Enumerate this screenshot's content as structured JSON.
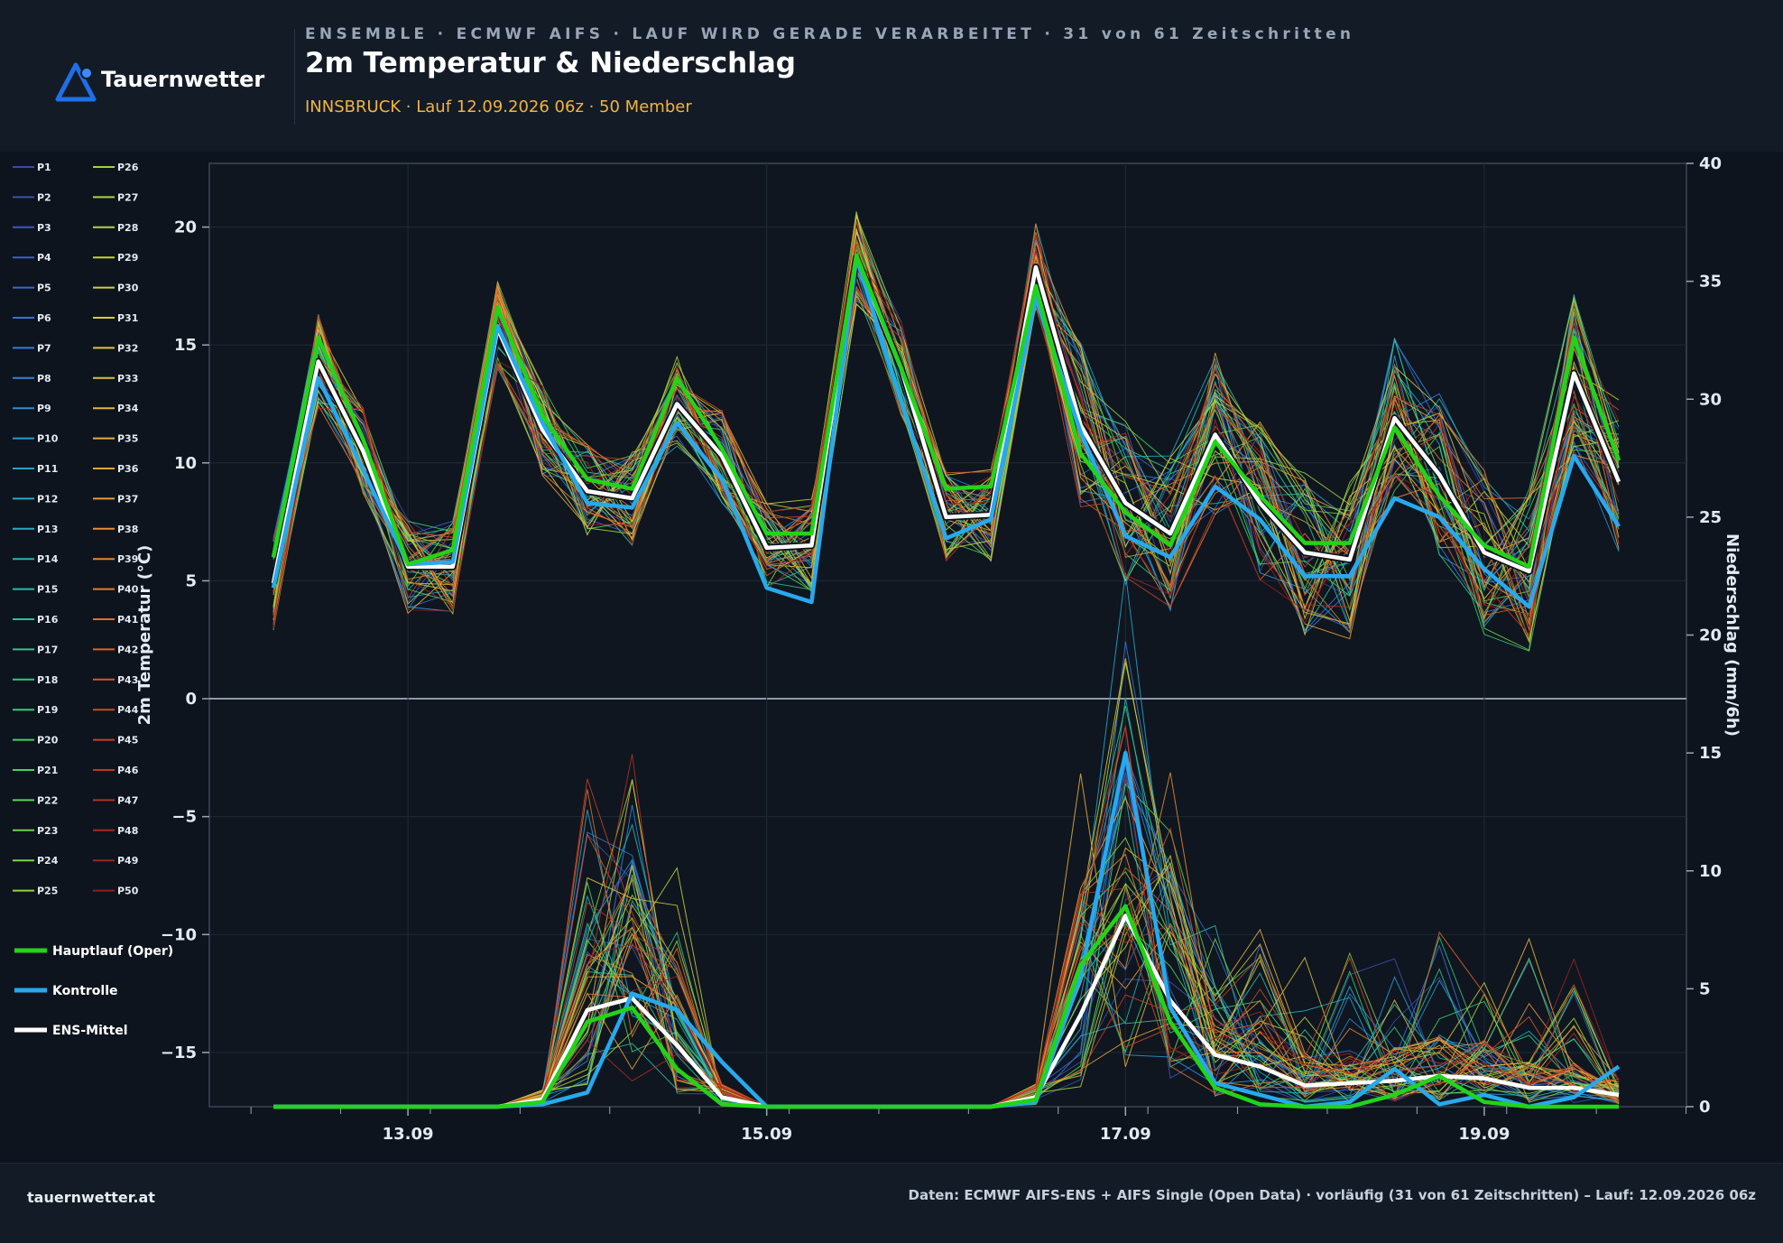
{
  "header": {
    "logo_text": "Tauernwetter",
    "kicker": "ENSEMBLE · ECMWF AIFS · LAUF WIRD GERADE VERARBEITET · 31 von 61 Zeitschritten",
    "title": "2m Temperatur & Niederschlag",
    "subtitle": "INNSBRUCK · Lauf 12.09.2026 06z · 50 Member"
  },
  "footer": {
    "site": "tauernwetter.at",
    "source": "Daten: ECMWF AIFS-ENS + AIFS Single (Open Data) · vorläufig (31 von 61 Zeitschritten) – Lauf: 12.09.2026 06z"
  },
  "colors": {
    "background": "#0e141d",
    "header": "#131b26",
    "oper": "#22d418",
    "control": "#27a9ee",
    "mean": "#ffffff",
    "subtitle": "#f2b43c",
    "logo": "#1f6fe8"
  },
  "chart_data": {
    "type": "line",
    "x": [
      "12.09 06z",
      "12.09 12z",
      "12.09 18z",
      "13.09 00z",
      "13.09 06z",
      "13.09 12z",
      "13.09 18z",
      "14.09 00z",
      "14.09 06z",
      "14.09 12z",
      "14.09 18z",
      "15.09 00z",
      "15.09 06z",
      "15.09 12z",
      "15.09 18z",
      "16.09 00z",
      "16.09 06z",
      "16.09 12z",
      "16.09 18z",
      "17.09 00z",
      "17.09 06z",
      "17.09 12z",
      "17.09 18z",
      "18.09 00z",
      "18.09 06z",
      "18.09 12z",
      "18.09 18z",
      "19.09 00z",
      "19.09 06z",
      "19.09 12z",
      "19.09 18z"
    ],
    "x_ticks": [
      "13.09",
      "15.09",
      "17.09",
      "19.09"
    ],
    "xlabel": "",
    "y_left": {
      "label": "2m Temperatur (°C)",
      "range": [
        -17.3,
        22.7
      ],
      "ticks": [
        -15,
        -10,
        -5,
        0,
        5,
        10,
        15,
        20
      ]
    },
    "y_right": {
      "label": "Niederschlag (mm/6h)",
      "range": [
        0,
        40
      ],
      "ticks": [
        0,
        5,
        10,
        15,
        20,
        25,
        30,
        35,
        40
      ]
    },
    "grid": true,
    "legend_placement": "left",
    "members": [
      "P1",
      "P2",
      "P3",
      "P4",
      "P5",
      "P6",
      "P7",
      "P8",
      "P9",
      "P10",
      "P11",
      "P12",
      "P13",
      "P14",
      "P15",
      "P16",
      "P17",
      "P18",
      "P19",
      "P20",
      "P21",
      "P22",
      "P23",
      "P24",
      "P25",
      "P26",
      "P27",
      "P28",
      "P29",
      "P30",
      "P31",
      "P32",
      "P33",
      "P34",
      "P35",
      "P36",
      "P37",
      "P38",
      "P39",
      "P40",
      "P41",
      "P42",
      "P43",
      "P44",
      "P45",
      "P46",
      "P47",
      "P48",
      "P49",
      "P50"
    ],
    "series": [
      {
        "name": "Hauptlauf (Oper)",
        "temperature": [
          6.0,
          15.3,
          11.0,
          5.7,
          6.3,
          16.6,
          12.0,
          9.3,
          8.9,
          13.6,
          10.6,
          7.0,
          7.0,
          18.8,
          14.0,
          8.9,
          9.0,
          17.5,
          10.4,
          7.9,
          6.5,
          10.9,
          8.6,
          6.6,
          6.6,
          11.5,
          8.6,
          6.5,
          5.6,
          15.3,
          10.1
        ],
        "precipitation": [
          0,
          0,
          0,
          0,
          0,
          0,
          0.2,
          3.6,
          4.2,
          1.6,
          0.1,
          0,
          0,
          0,
          0,
          0,
          0,
          0.3,
          6.0,
          8.5,
          3.6,
          0.8,
          0.1,
          0,
          0,
          0.5,
          1.3,
          0.2,
          0,
          0,
          0
        ]
      },
      {
        "name": "Kontrolle",
        "temperature": [
          4.7,
          13.6,
          9.7,
          5.7,
          5.8,
          15.8,
          11.7,
          8.3,
          8.1,
          11.7,
          9.3,
          4.7,
          4.1,
          18.7,
          12.6,
          6.8,
          7.6,
          17.0,
          11.3,
          6.9,
          6.0,
          9.0,
          7.6,
          5.2,
          5.2,
          8.5,
          7.7,
          5.5,
          3.9,
          10.3,
          7.3
        ],
        "precipitation": [
          0,
          0,
          0,
          0,
          0,
          0,
          0.1,
          0.6,
          4.8,
          4.1,
          1.9,
          0,
          0,
          0,
          0,
          0,
          0,
          0.2,
          5.5,
          15.0,
          4.2,
          1.0,
          0.5,
          0,
          0.2,
          1.6,
          0.1,
          0.5,
          0,
          0.4,
          1.7
        ]
      },
      {
        "name": "ENS-Mittel",
        "temperature": [
          4.9,
          14.3,
          10.5,
          5.6,
          5.6,
          15.7,
          11.4,
          8.8,
          8.5,
          12.5,
          10.3,
          6.4,
          6.5,
          18.7,
          14.0,
          7.7,
          7.8,
          18.3,
          11.6,
          8.3,
          7.0,
          11.2,
          8.3,
          6.2,
          5.9,
          11.9,
          9.5,
          6.2,
          5.4,
          13.8,
          9.2
        ],
        "precipitation": [
          0,
          0,
          0,
          0,
          0,
          0,
          0.3,
          4.1,
          4.6,
          2.6,
          0.4,
          0,
          0,
          0,
          0,
          0,
          0,
          0.4,
          3.9,
          8.1,
          4.5,
          2.2,
          1.7,
          0.9,
          1.0,
          1.1,
          1.3,
          1.2,
          0.8,
          0.8,
          0.5
        ]
      }
    ]
  }
}
